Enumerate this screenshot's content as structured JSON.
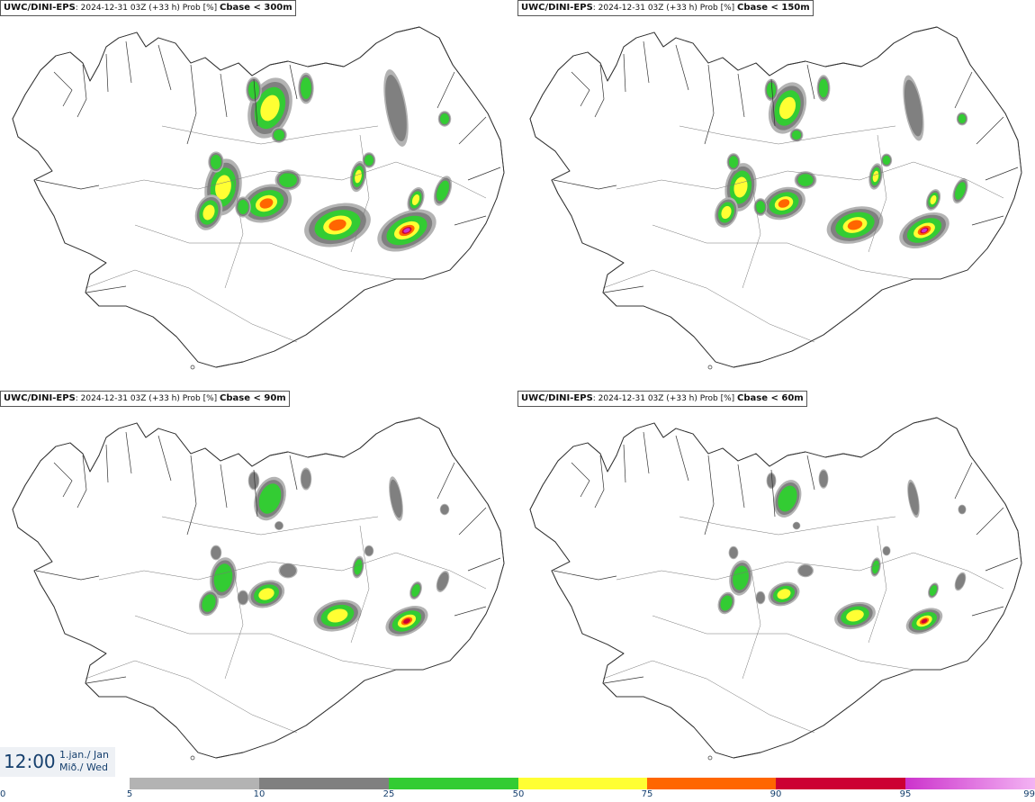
{
  "panels": [
    {
      "model": "UWC/DINI-EPS",
      "info": ": 2024-12-31 03Z (+33 h) Prob [%]",
      "variable": "Cbase < 300m"
    },
    {
      "model": "UWC/DINI-EPS",
      "info": ": 2024-12-31 03Z (+33 h) Prob [%]",
      "variable": "Cbase < 150m"
    },
    {
      "model": "UWC/DINI-EPS",
      "info": ": 2024-12-31 03Z (+33 h) Prob [%]",
      "variable": "Cbase < 90m"
    },
    {
      "model": "UWC/DINI-EPS",
      "info": ": 2024-12-31 03Z (+33 h) Prob [%]",
      "variable": "Cbase < 60m"
    }
  ],
  "valid_time": {
    "time": "12:00",
    "date_line1": "1.jan./ Jan",
    "date_line2": "Mið./ Wed"
  },
  "legend": {
    "ticks": [
      "0",
      "5",
      "10",
      "25",
      "50",
      "75",
      "90",
      "95",
      "99"
    ],
    "colors": [
      "#ffffff",
      "#b3b3b3",
      "#808080",
      "#33cc33",
      "#ffff33",
      "#ff6600",
      "#cc0033",
      "#cc33cc",
      "#f3b3f3"
    ]
  },
  "map_colors": {
    "land_outline": "#333333",
    "gray_light": "#b3b3b3",
    "gray_dark": "#808080",
    "green": "#33cc33",
    "yellow": "#ffff33",
    "orange": "#ff6600",
    "red": "#cc0033",
    "magenta": "#cc33cc"
  }
}
